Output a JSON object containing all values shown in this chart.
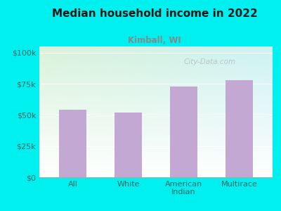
{
  "title": "Median household income in 2022",
  "subtitle": "Kimball, WI",
  "categories": [
    "All",
    "White",
    "American\nIndian",
    "Multirace"
  ],
  "values": [
    54000,
    52000,
    73000,
    78000
  ],
  "bar_color": "#c4a8d4",
  "background_color": "#00efef",
  "title_color": "#1a1a1a",
  "subtitle_color": "#888888",
  "axis_label_color": "#336666",
  "yticks": [
    0,
    25000,
    50000,
    75000,
    100000
  ],
  "ytick_labels": [
    "$0",
    "$25k",
    "$50k",
    "$75k",
    "$100k"
  ],
  "ylim": [
    0,
    105000
  ],
  "watermark": "City-Data.com"
}
